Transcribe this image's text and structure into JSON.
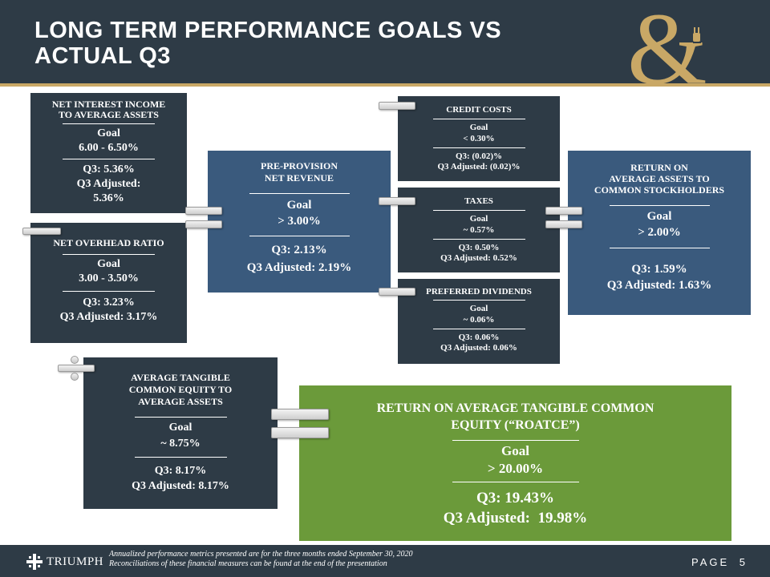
{
  "title_line1": "LONG TERM PERFORMANCE GOALS VS",
  "title_line2": "ACTUAL Q3",
  "nii": {
    "heading_line1": "NET INTEREST INCOME",
    "heading_line2": "TO AVERAGE ASSETS",
    "goal_label": "Goal",
    "goal": "6.00 - 6.50%",
    "q3": "Q3: 5.36%",
    "q3_adj_line1": "Q3 Adjusted:",
    "q3_adj_line2": "5.36%"
  },
  "overhead": {
    "heading": "NET OVERHEAD RATIO",
    "goal_label": "Goal",
    "goal": "3.00 - 3.50%",
    "q3": "Q3: 3.23%",
    "q3_adj": "Q3 Adjusted: 3.17%"
  },
  "pprev": {
    "heading_line1": "PRE-PROVISION",
    "heading_line2": "NET REVENUE",
    "goal_label": "Goal",
    "goal": "> 3.00%",
    "q3": "Q3: 2.13%",
    "q3_adj": "Q3 Adjusted: 2.19%"
  },
  "credit": {
    "heading": "CREDIT COSTS",
    "goal_label": "Goal",
    "goal": "< 0.30%",
    "q3": "Q3: (0.02)%",
    "q3_adj": "Q3 Adjusted: (0.02)%"
  },
  "taxes": {
    "heading": "TAXES",
    "goal_label": "Goal",
    "goal": "~ 0.57%",
    "q3": "Q3: 0.50%",
    "q3_adj": "Q3 Adjusted: 0.52%"
  },
  "preferred": {
    "heading": "PREFERRED DIVIDENDS",
    "goal_label": "Goal",
    "goal": "~ 0.06%",
    "q3": "Q3: 0.06%",
    "q3_adj": "Q3 Adjusted: 0.06%"
  },
  "roaa": {
    "heading_line1": "RETURN ON",
    "heading_line2": "AVERAGE ASSETS TO",
    "heading_line3": "COMMON STOCKHOLDERS",
    "goal_label": "Goal",
    "goal": "> 2.00%",
    "q3": "Q3: 1.59%",
    "q3_adj": "Q3 Adjusted: 1.63%"
  },
  "tce": {
    "heading_line1": "AVERAGE TANGIBLE",
    "heading_line2": "COMMON EQUITY TO",
    "heading_line3": "AVERAGE ASSETS",
    "goal_label": "Goal",
    "goal": "~ 8.75%",
    "q3": "Q3: 8.17%",
    "q3_adj": "Q3 Adjusted: 8.17%"
  },
  "roatce": {
    "heading_line1": "RETURN ON AVERAGE TANGIBLE COMMON",
    "heading_line2": "EQUITY (“ROATCE”)",
    "goal_label": "Goal",
    "goal": "> 20.00%",
    "q3": "Q3: 19.43%",
    "q3_adj": "Q3 Adjusted:  19.98%"
  },
  "footer": {
    "logo_text": "TRIUMPH",
    "note_line1": "Annualized performance metrics presented are for the three months ended September 30, 2020",
    "note_line2": "Reconciliations of these financial measures can be found at the end of the presentation",
    "page_label": "PAGE",
    "page_number": "5"
  },
  "colors": {
    "navy": "#2e3b46",
    "blue": "#3a5a7d",
    "green": "#6b9a3a",
    "gold": "#c9a866"
  }
}
